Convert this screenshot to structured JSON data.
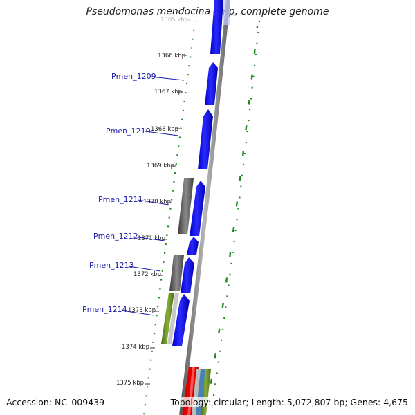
{
  "title": "Pseudomonas mendocina ymp, complete genome",
  "footer": {
    "accession": "Accession: NC_009439",
    "summary": "Topology: circular; Length: 5,072,807 bp; Genes: 4,675"
  },
  "kbp_labels": [
    "1365 kbp",
    "1366 kbp",
    "1367 kbp",
    "1368 kbp",
    "1369 kbp",
    "1370 kbp",
    "1371 kbp",
    "1372 kbp",
    "1373 kbp",
    "1374 kbp",
    "1375 kbp"
  ],
  "genes": [
    "Pmen_1209",
    "Pmen_1210",
    "Pmen_1211",
    "Pmen_1212",
    "Pmen_1213",
    "Pmen_1214"
  ],
  "colors": {
    "forward_cds": "#0000ee",
    "other_cds": "#555555",
    "trna": "#6b8e23",
    "rrna": "#e00000",
    "misc": "#4682b4",
    "gene_label": "#1a1aa8",
    "gc_ticks": "#1e8a1e",
    "backbone": "#808080"
  }
}
